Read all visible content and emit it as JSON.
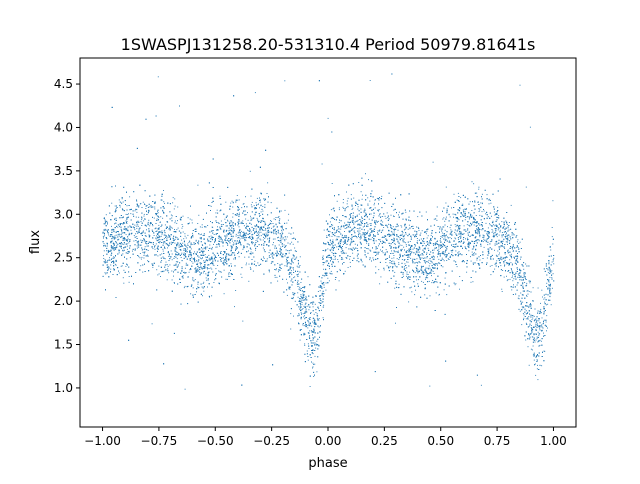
{
  "chart_data": {
    "type": "scatter",
    "title": "1SWASPJ131258.20-531310.4 Period 50979.81641s",
    "xlabel": "phase",
    "ylabel": "flux",
    "xlim": [
      -1.1,
      1.1
    ],
    "ylim": [
      0.55,
      4.8
    ],
    "x_ticks": [
      -1.0,
      -0.75,
      -0.5,
      -0.25,
      0.0,
      0.25,
      0.5,
      0.75,
      1.0
    ],
    "x_tick_labels": [
      "−1.00",
      "−0.75",
      "−0.50",
      "−0.25",
      "0.00",
      "0.25",
      "0.50",
      "0.75",
      "1.00"
    ],
    "y_ticks": [
      1.0,
      1.5,
      2.0,
      2.5,
      3.0,
      3.5,
      4.0,
      4.5
    ],
    "y_tick_labels": [
      "1.0",
      "1.5",
      "2.0",
      "2.5",
      "3.0",
      "3.5",
      "4.0",
      "4.5"
    ],
    "grid": false,
    "marker_color": "#1f77b4",
    "light_curve_profile": {
      "phase_range": [
        -1.0,
        1.0
      ],
      "phase_points": [
        -1.0,
        -0.9,
        -0.8,
        -0.7,
        -0.6,
        -0.55,
        -0.5,
        -0.4,
        -0.3,
        -0.2,
        -0.15,
        -0.12,
        -0.09,
        -0.07,
        -0.04,
        -0.02,
        0.0,
        0.1,
        0.2,
        0.3,
        0.4,
        0.45,
        0.5,
        0.6,
        0.7,
        0.8,
        0.85,
        0.88,
        0.91,
        0.93,
        0.96,
        0.98,
        1.0
      ],
      "mean_flux": [
        2.62,
        2.78,
        2.82,
        2.7,
        2.52,
        2.48,
        2.62,
        2.8,
        2.82,
        2.62,
        2.32,
        2.0,
        1.68,
        1.58,
        1.82,
        2.3,
        2.62,
        2.82,
        2.82,
        2.68,
        2.5,
        2.48,
        2.62,
        2.8,
        2.82,
        2.62,
        2.32,
        2.0,
        1.68,
        1.58,
        1.82,
        2.3,
        2.62
      ],
      "scatter_sigma": 0.22,
      "outlier_range": [
        0.75,
        4.65
      ]
    }
  }
}
